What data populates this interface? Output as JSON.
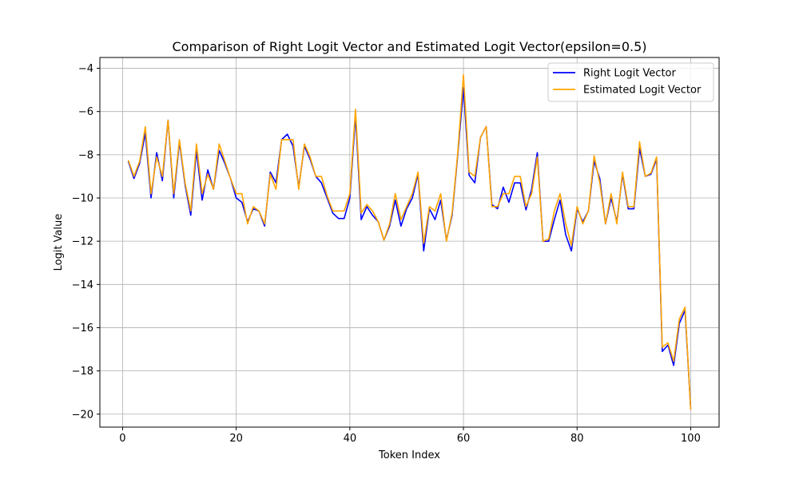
{
  "chart_data": {
    "type": "line",
    "title": "Comparison of Right Logit Vector and Estimated Logit Vector(epsilon=0.5)",
    "xlabel": "Token Index",
    "ylabel": "Logit Value",
    "xlim": [
      -4,
      105
    ],
    "ylim": [
      -20.6,
      -3.5
    ],
    "xticks": [
      0,
      20,
      40,
      60,
      80,
      100
    ],
    "yticks": [
      -20,
      -18,
      -16,
      -14,
      -12,
      -10,
      -8,
      -6,
      -4
    ],
    "xtick_labels": [
      "0",
      "20",
      "40",
      "60",
      "80",
      "100"
    ],
    "ytick_labels": [
      "−20",
      "−18",
      "−16",
      "−14",
      "−12",
      "−10",
      "−8",
      "−6",
      "−4"
    ],
    "grid": true,
    "legend_position": "top-right",
    "x": [
      1,
      2,
      3,
      4,
      5,
      6,
      7,
      8,
      9,
      10,
      11,
      12,
      13,
      14,
      15,
      16,
      17,
      18,
      19,
      20,
      21,
      22,
      23,
      24,
      25,
      26,
      27,
      28,
      29,
      30,
      31,
      32,
      33,
      34,
      35,
      36,
      37,
      38,
      39,
      40,
      41,
      42,
      43,
      44,
      45,
      46,
      47,
      48,
      49,
      50,
      51,
      52,
      53,
      54,
      55,
      56,
      57,
      58,
      59,
      60,
      61,
      62,
      63,
      64,
      65,
      66,
      67,
      68,
      69,
      70,
      71,
      72,
      73,
      74,
      75,
      76,
      77,
      78,
      79,
      80,
      81,
      82,
      83,
      84,
      85,
      86,
      87,
      88,
      89,
      90,
      91,
      92,
      93,
      94,
      95,
      96,
      97,
      98,
      99,
      100
    ],
    "series": [
      {
        "name": "Right Logit Vector",
        "color": "#0000ff",
        "values": [
          -8.3,
          -9.1,
          -8.4,
          -7.0,
          -10.0,
          -7.9,
          -9.2,
          -6.4,
          -10.0,
          -7.4,
          -9.4,
          -10.8,
          -7.8,
          -10.1,
          -8.7,
          -9.6,
          -7.8,
          -8.4,
          -9.1,
          -10.0,
          -10.2,
          -11.1,
          -10.5,
          -10.6,
          -11.3,
          -8.8,
          -9.3,
          -7.3,
          -7.05,
          -7.6,
          -9.5,
          -7.6,
          -8.2,
          -9.0,
          -9.3,
          -10.0,
          -10.7,
          -10.95,
          -10.95,
          -10.0,
          -6.2,
          -11.0,
          -10.4,
          -10.8,
          -11.1,
          -11.95,
          -11.3,
          -10.1,
          -11.3,
          -10.5,
          -10.0,
          -8.9,
          -12.45,
          -10.5,
          -11.0,
          -10.1,
          -11.95,
          -10.8,
          -8.0,
          -4.9,
          -8.95,
          -9.3,
          -7.2,
          -6.7,
          -10.3,
          -10.5,
          -9.5,
          -10.2,
          -9.3,
          -9.3,
          -10.55,
          -9.6,
          -7.9,
          -12.0,
          -12.0,
          -11.0,
          -10.1,
          -11.7,
          -12.45,
          -10.5,
          -11.1,
          -10.6,
          -8.3,
          -9.1,
          -11.2,
          -10.0,
          -11.1,
          -8.9,
          -10.5,
          -10.5,
          -7.7,
          -9.0,
          -8.9,
          -8.2,
          -17.1,
          -16.8,
          -17.75,
          -15.8,
          -15.2,
          -19.75
        ]
      },
      {
        "name": "Estimated Logit Vector",
        "color": "#ffa500",
        "values": [
          -8.25,
          -9.0,
          -8.3,
          -6.7,
          -9.8,
          -8.1,
          -9.0,
          -6.4,
          -9.8,
          -7.3,
          -9.3,
          -10.6,
          -7.5,
          -9.8,
          -8.9,
          -9.6,
          -7.5,
          -8.3,
          -9.1,
          -9.8,
          -9.8,
          -11.2,
          -10.4,
          -10.6,
          -11.2,
          -8.9,
          -9.6,
          -7.3,
          -7.3,
          -7.3,
          -9.6,
          -7.5,
          -8.1,
          -9.0,
          -9.0,
          -9.9,
          -10.6,
          -10.6,
          -10.6,
          -9.8,
          -5.9,
          -10.7,
          -10.3,
          -10.6,
          -11.1,
          -11.95,
          -11.2,
          -9.8,
          -11.0,
          -10.4,
          -9.8,
          -8.8,
          -12.1,
          -10.4,
          -10.6,
          -9.8,
          -12.0,
          -10.7,
          -7.9,
          -4.3,
          -8.8,
          -9.0,
          -7.2,
          -6.7,
          -10.4,
          -10.4,
          -9.8,
          -9.8,
          -9.0,
          -9.0,
          -10.4,
          -9.8,
          -8.1,
          -12.0,
          -11.9,
          -10.6,
          -9.8,
          -11.2,
          -12.2,
          -10.4,
          -11.2,
          -10.6,
          -8.05,
          -9.3,
          -11.2,
          -9.8,
          -11.2,
          -8.8,
          -10.4,
          -10.4,
          -7.4,
          -9.0,
          -8.85,
          -8.1,
          -16.9,
          -16.7,
          -17.55,
          -15.6,
          -15.05,
          -19.8
        ]
      }
    ]
  }
}
